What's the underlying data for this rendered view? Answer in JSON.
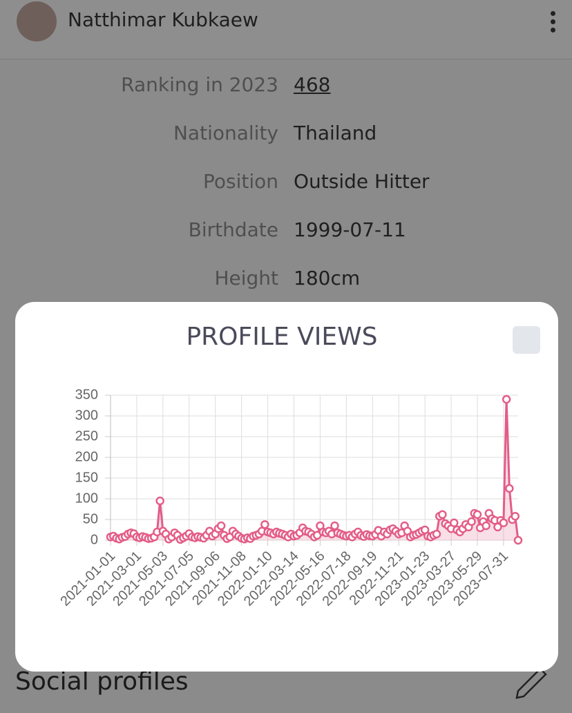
{
  "header": {
    "name": "Natthimar Kubkaew"
  },
  "profile": {
    "rows": [
      {
        "label": "Ranking in 2023",
        "value": "468"
      },
      {
        "label": "Nationality",
        "value": "Thailand"
      },
      {
        "label": "Position",
        "value": "Outside Hitter"
      },
      {
        "label": "Birthdate",
        "value": "1999-07-11"
      },
      {
        "label": "Height",
        "value": "180cm"
      }
    ]
  },
  "section": {
    "title": "Social profiles"
  },
  "chart_data": {
    "type": "line",
    "title": "PROFILE VIEWS",
    "color": "#e35d88",
    "grid": true,
    "categories": [
      "2021-01-01",
      null,
      null,
      null,
      null,
      null,
      null,
      null,
      null,
      "2021-03-01",
      null,
      null,
      null,
      null,
      null,
      null,
      null,
      null,
      "2021-05-03",
      null,
      null,
      null,
      null,
      null,
      null,
      null,
      null,
      "2021-07-05",
      null,
      null,
      null,
      null,
      null,
      null,
      null,
      null,
      "2021-09-06",
      null,
      null,
      null,
      null,
      null,
      null,
      null,
      null,
      "2021-11-08",
      null,
      null,
      null,
      null,
      null,
      null,
      null,
      null,
      "2022-01-10",
      null,
      null,
      null,
      null,
      null,
      null,
      null,
      null,
      "2022-03-14",
      null,
      null,
      null,
      null,
      null,
      null,
      null,
      null,
      "2022-05-16",
      null,
      null,
      null,
      null,
      null,
      null,
      null,
      null,
      "2022-07-18",
      null,
      null,
      null,
      null,
      null,
      null,
      null,
      null,
      "2022-09-19",
      null,
      null,
      null,
      null,
      null,
      null,
      null,
      null,
      "2022-11-21",
      null,
      null,
      null,
      null,
      null,
      null,
      null,
      null,
      "2023-01-23",
      null,
      null,
      null,
      null,
      null,
      null,
      null,
      null,
      "2023-03-27",
      null,
      null,
      null,
      null,
      null,
      null,
      null,
      null,
      "2023-05-29",
      null,
      null,
      null,
      null,
      null,
      null,
      null,
      null,
      "2023-07-31",
      null,
      null,
      null,
      null,
      null
    ],
    "values": [
      8,
      10,
      5,
      3,
      7,
      9,
      15,
      18,
      16,
      8,
      6,
      9,
      7,
      4,
      5,
      8,
      20,
      95,
      22,
      15,
      3,
      8,
      18,
      12,
      2,
      6,
      10,
      16,
      8,
      6,
      9,
      7,
      5,
      12,
      22,
      10,
      15,
      28,
      35,
      12,
      4,
      8,
      22,
      15,
      10,
      5,
      3,
      6,
      4,
      10,
      12,
      15,
      22,
      38,
      20,
      18,
      15,
      20,
      17,
      15,
      12,
      8,
      15,
      10,
      12,
      18,
      30,
      22,
      20,
      15,
      8,
      12,
      35,
      20,
      18,
      22,
      15,
      35,
      18,
      15,
      12,
      10,
      12,
      8,
      15,
      20,
      12,
      9,
      14,
      11,
      10,
      14,
      24,
      10,
      20,
      15,
      25,
      28,
      22,
      15,
      18,
      35,
      22,
      8,
      12,
      14,
      18,
      22,
      25,
      10,
      8,
      12,
      15,
      58,
      62,
      40,
      35,
      28,
      42,
      25,
      20,
      28,
      38,
      32,
      45,
      65,
      62,
      30,
      45,
      35,
      65,
      52,
      48,
      32,
      48,
      42,
      340,
      125,
      50,
      58,
      0
    ],
    "ylim": [
      0,
      350
    ],
    "yticks": [
      0,
      50,
      100,
      150,
      200,
      250,
      300,
      350
    ]
  }
}
